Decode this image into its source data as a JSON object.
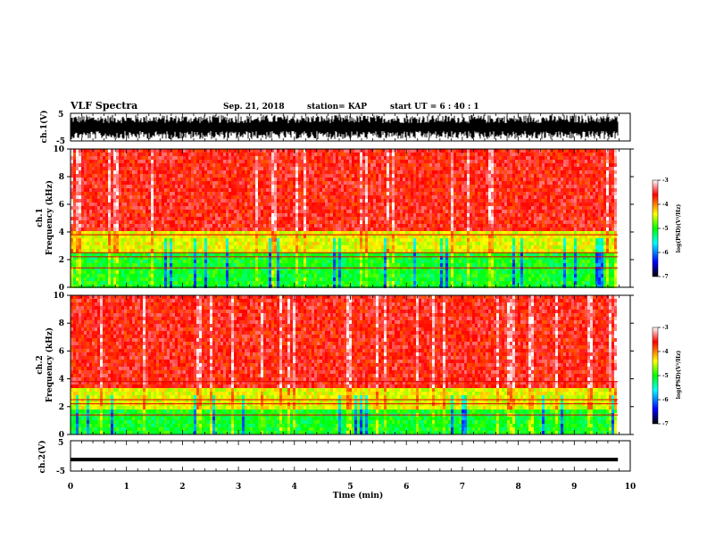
{
  "header": {
    "title": "VLF Spectra",
    "date": "Sep. 21, 2018",
    "station": "station= KAP",
    "start": "start  UT =   6 : 40 : 1"
  },
  "chart_data": [
    {
      "type": "line",
      "title": "",
      "ylabel": "ch.1(V)",
      "ylim": [
        -5,
        5
      ],
      "y_ticks": [
        "5",
        "-5"
      ],
      "xlim": [
        0,
        10
      ],
      "series": [
        {
          "values_description": "",
          "color": "#000000"
        }
      ]
    },
    {
      "type": "heatmap",
      "ylabel_top": "ch.1",
      "ylabel": "Frequency (kHz)",
      "ylim": [
        0,
        10
      ],
      "y_ticks": [
        "0",
        "2",
        "4",
        "6",
        "8",
        "10"
      ],
      "xlim": [
        0,
        10
      ],
      "colorbar": {
        "label": "log(PSD)(V²/Hz)",
        "range": [
          -7,
          -3
        ],
        "ticks": [
          "-3",
          "-4",
          "-5",
          "-6",
          "-7"
        ]
      }
    },
    {
      "type": "heatmap",
      "ylabel_top": "ch.2",
      "ylabel": "Frequency (kHz)",
      "ylim": [
        0,
        10
      ],
      "y_ticks": [
        "0",
        "2",
        "4",
        "6",
        "8",
        "10"
      ],
      "xlim": [
        0,
        10
      ],
      "colorbar": {
        "label": "log(PSD)(V²/Hz)",
        "range": [
          -7,
          -3
        ],
        "ticks": [
          "-3",
          "-4",
          "-5",
          "-6",
          "-7"
        ]
      }
    },
    {
      "type": "line",
      "ylabel": "ch.2(V)",
      "ylim": [
        -5,
        5
      ],
      "y_ticks": [
        "5",
        "-5"
      ],
      "xlim": [
        0,
        10
      ],
      "x_ticks": [
        "0",
        "1",
        "2",
        "3",
        "4",
        "5",
        "6",
        "7",
        "8",
        "9",
        "10"
      ],
      "xlabel": "Time (min)",
      "series": [
        {
          "level": -1.2,
          "color": "#000000"
        }
      ]
    }
  ],
  "colors": {
    "scale": [
      "#000000",
      "#0000ff",
      "#00ffff",
      "#00ff00",
      "#ffff00",
      "#ff0000",
      "#ffffff"
    ]
  }
}
